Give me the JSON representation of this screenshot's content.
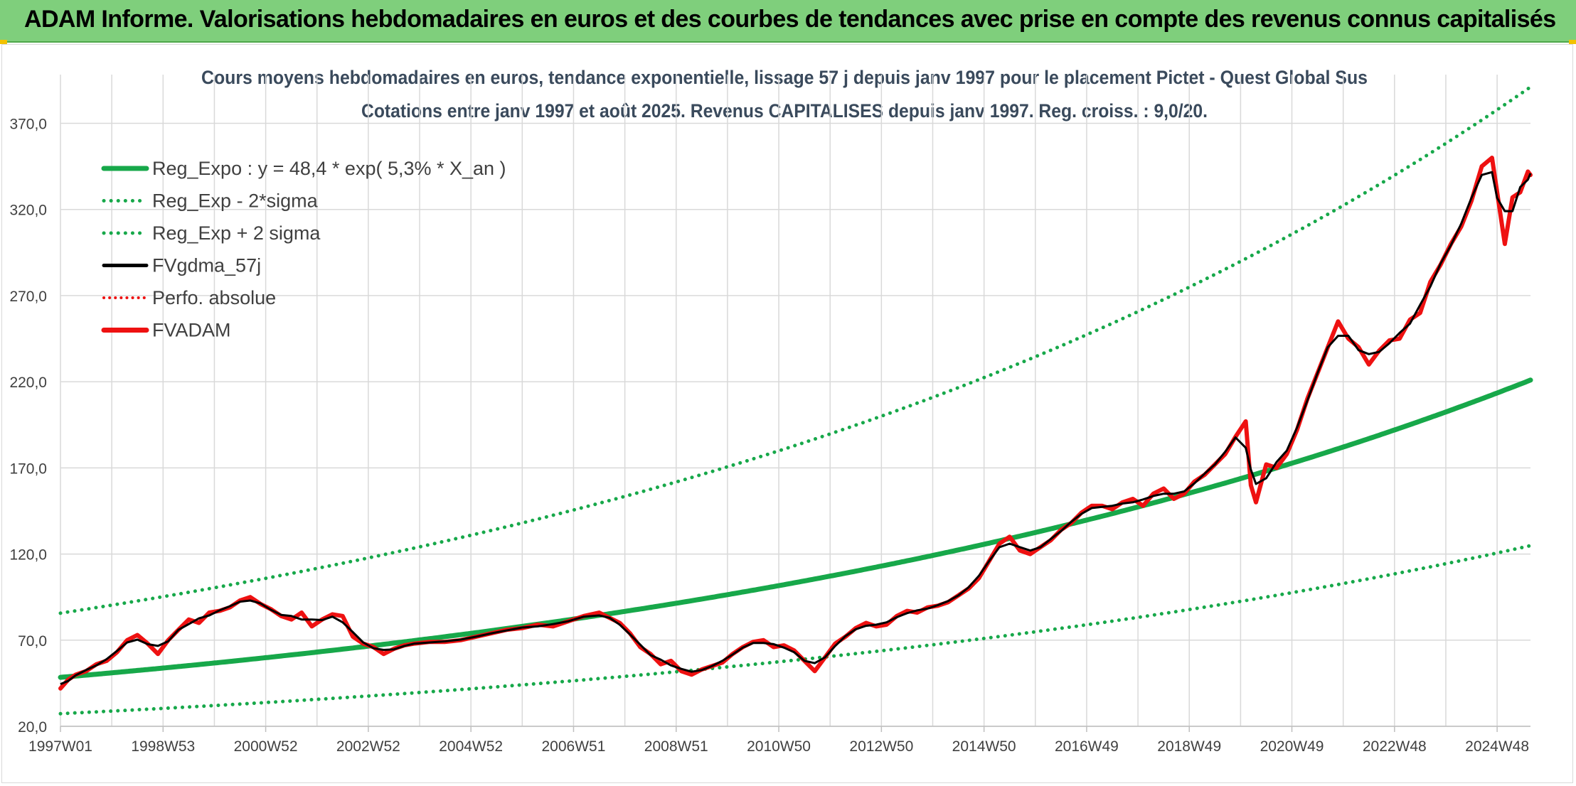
{
  "report": {
    "title": "ADAM Informe. Valorisations hebdomadaires en euros et des courbes de tendances avec prise en compte des revenus connus capitalisés"
  },
  "colors": {
    "banner": "#7fcf7c",
    "trend": "#17a84a",
    "bands": "#17a84a",
    "smoothed": "#000000",
    "price": "#ee1111",
    "perf": "#ee1111",
    "grid": "#d9d9d9"
  },
  "chart_data": {
    "type": "line",
    "title": "Cours moyens hebdomadaires en euros, tendance exponentielle, lissage 57 j depuis janv 1997 pour le placement Pictet - Quest Global Sus",
    "subtitle": "Cotations entre janv 1997 et août 2025. Revenus CAPITALISES depuis janv 1997. Reg. croiss. : 9,0/20.",
    "ylim": [
      20,
      390
    ],
    "y_ticks": [
      "20,0",
      "70,0",
      "120,0",
      "170,0",
      "220,0",
      "270,0",
      "320,0",
      "370,0"
    ],
    "y_tick_values": [
      20,
      70,
      120,
      170,
      220,
      270,
      320,
      370
    ],
    "x_range": [
      1997.0,
      2025.65
    ],
    "x_ticks": [
      "1997W01",
      "1998W53",
      "2000W52",
      "2002W52",
      "2004W52",
      "2006W51",
      "2008W51",
      "2010W50",
      "2012W50",
      "2014W50",
      "2016W49",
      "2018W49",
      "2020W49",
      "2022W48",
      "2024W48"
    ],
    "x_tick_values": [
      1997.0,
      1999.0,
      2001.0,
      2003.0,
      2005.0,
      2007.0,
      2009.0,
      2011.0,
      2013.0,
      2015.0,
      2017.0,
      2019.0,
      2021.0,
      2023.0,
      2025.0
    ],
    "grid": true,
    "legend_position": "top-left",
    "trend": {
      "a": 48.4,
      "rate": 0.053,
      "factor_low": 0.565,
      "factor_high": 1.77
    },
    "series": [
      {
        "name": "Reg_Expo : y = 48,4 * exp( 5,3% *  X_an )",
        "style": "solid-thick",
        "color": "#17a84a"
      },
      {
        "name": "Reg_Exp - 2*sigma",
        "style": "dotted",
        "color": "#17a84a"
      },
      {
        "name": "Reg_Exp + 2 sigma",
        "style": "dotted",
        "color": "#17a84a"
      },
      {
        "name": "FVgdma_57j",
        "style": "solid",
        "color": "#000000"
      },
      {
        "name": "Perfo. absolue",
        "style": "dotted-thin",
        "color": "#ee1111"
      },
      {
        "name": "FVADAM",
        "style": "solid-thick",
        "color": "#ee1111"
      }
    ],
    "price": {
      "x": [
        1997.0,
        1997.15,
        1997.3,
        1997.5,
        1997.7,
        1997.9,
        1998.1,
        1998.3,
        1998.5,
        1998.7,
        1998.9,
        1999.1,
        1999.3,
        1999.5,
        1999.7,
        1999.9,
        2000.1,
        2000.3,
        2000.5,
        2000.7,
        2000.9,
        2001.1,
        2001.3,
        2001.5,
        2001.7,
        2001.9,
        2002.1,
        2002.3,
        2002.5,
        2002.7,
        2002.9,
        2003.1,
        2003.3,
        2003.5,
        2003.7,
        2003.9,
        2004.2,
        2004.5,
        2004.8,
        2005.1,
        2005.4,
        2005.7,
        2006.0,
        2006.3,
        2006.6,
        2006.9,
        2007.2,
        2007.5,
        2007.7,
        2007.9,
        2008.1,
        2008.3,
        2008.5,
        2008.7,
        2008.9,
        2009.1,
        2009.3,
        2009.5,
        2009.7,
        2009.9,
        2010.1,
        2010.3,
        2010.5,
        2010.7,
        2010.9,
        2011.1,
        2011.3,
        2011.5,
        2011.7,
        2011.9,
        2012.1,
        2012.3,
        2012.5,
        2012.7,
        2012.9,
        2013.1,
        2013.3,
        2013.5,
        2013.7,
        2013.9,
        2014.1,
        2014.3,
        2014.5,
        2014.7,
        2014.9,
        2015.1,
        2015.3,
        2015.5,
        2015.7,
        2015.9,
        2016.1,
        2016.3,
        2016.5,
        2016.7,
        2016.9,
        2017.1,
        2017.3,
        2017.5,
        2017.7,
        2017.9,
        2018.1,
        2018.3,
        2018.5,
        2018.7,
        2018.9,
        2019.1,
        2019.3,
        2019.5,
        2019.7,
        2019.9,
        2020.1,
        2020.2,
        2020.3,
        2020.5,
        2020.7,
        2020.9,
        2021.1,
        2021.3,
        2021.5,
        2021.7,
        2021.9,
        2022.1,
        2022.3,
        2022.5,
        2022.7,
        2022.9,
        2023.1,
        2023.3,
        2023.5,
        2023.7,
        2023.9,
        2024.1,
        2024.3,
        2024.5,
        2024.7,
        2024.9,
        2025.0,
        2025.15,
        2025.3,
        2025.45,
        2025.6,
        2025.65
      ],
      "y": [
        42,
        47,
        50,
        52,
        56,
        58,
        63,
        70,
        73,
        68,
        62,
        70,
        76,
        82,
        80,
        86,
        87,
        89,
        93,
        95,
        91,
        88,
        84,
        82,
        86,
        78,
        82,
        85,
        84,
        72,
        68,
        66,
        62,
        65,
        67,
        68,
        69,
        69,
        70,
        72,
        74,
        76,
        77,
        79,
        78,
        81,
        84,
        86,
        83,
        80,
        74,
        66,
        62,
        56,
        58,
        52,
        50,
        53,
        55,
        57,
        62,
        66,
        69,
        70,
        66,
        67,
        64,
        58,
        52,
        60,
        68,
        72,
        77,
        80,
        78,
        79,
        84,
        87,
        86,
        89,
        90,
        92,
        96,
        100,
        106,
        116,
        126,
        130,
        122,
        120,
        124,
        128,
        134,
        138,
        144,
        148,
        148,
        146,
        150,
        152,
        148,
        155,
        158,
        152,
        155,
        162,
        166,
        172,
        178,
        188,
        197,
        160,
        150,
        172,
        170,
        178,
        192,
        210,
        225,
        240,
        255,
        245,
        240,
        230,
        238,
        244,
        245,
        256,
        260,
        278,
        288,
        300,
        310,
        325,
        345,
        350,
        330,
        300,
        327,
        330,
        342,
        340
      ]
    }
  }
}
